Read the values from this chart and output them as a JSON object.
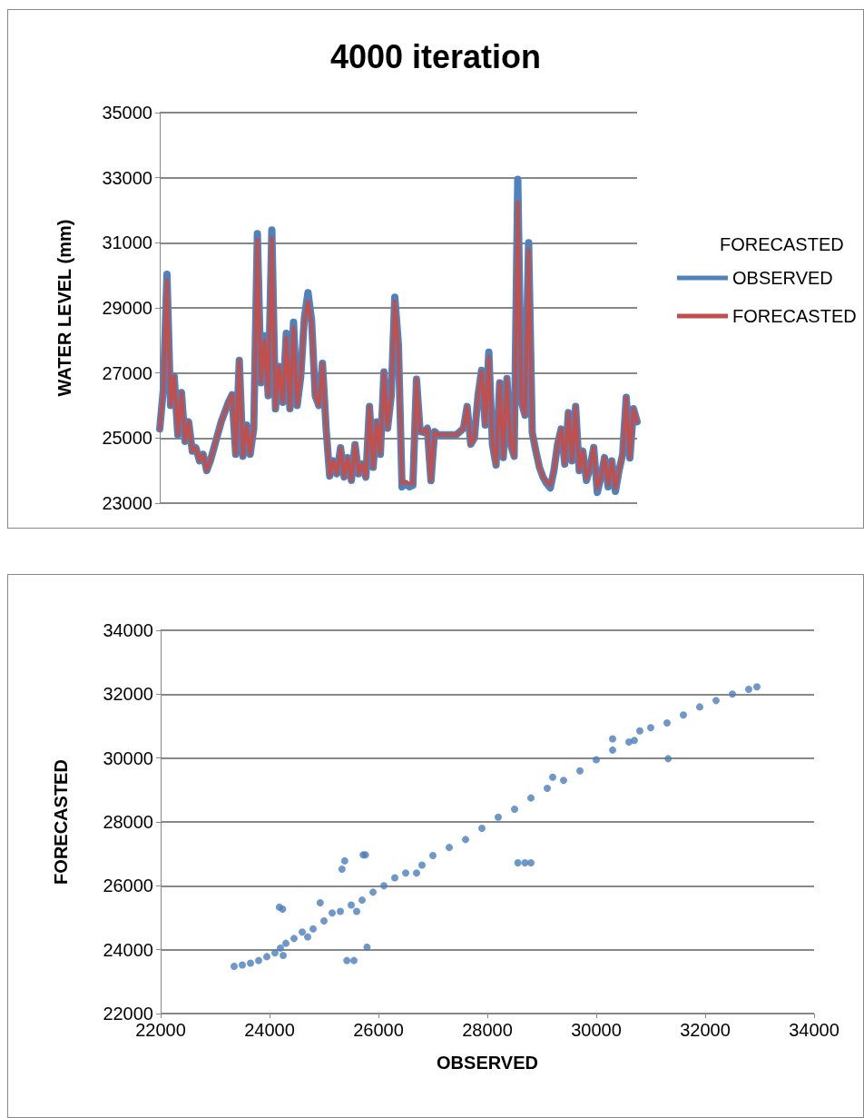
{
  "chart_data": [
    {
      "type": "line",
      "title": "4000 iteration",
      "ylabel": "WATER LEVEL (mm)",
      "legend_title": "FORECASTED",
      "categories": [
        null,
        null,
        null,
        null,
        null,
        null,
        null,
        null,
        null,
        null,
        null,
        null,
        null,
        null,
        null,
        null,
        null,
        null,
        null,
        null,
        null,
        null,
        null,
        null,
        null,
        null,
        null,
        null,
        null,
        null,
        null,
        null,
        null,
        null,
        null,
        null,
        null,
        null,
        null,
        null,
        null,
        null,
        null,
        null,
        null,
        null,
        null,
        null,
        null,
        null,
        null,
        null,
        null,
        null,
        null,
        null,
        null,
        null,
        null,
        null,
        null,
        null,
        null,
        null,
        null,
        null,
        null,
        null,
        null,
        null,
        null,
        null,
        null,
        null,
        null,
        null,
        null,
        null,
        null,
        null,
        null,
        null,
        null,
        null,
        null,
        null,
        null,
        null,
        null,
        null,
        null,
        null,
        null,
        null,
        null,
        null,
        null,
        null,
        null,
        null,
        null,
        null,
        null,
        null,
        null,
        null,
        null,
        null,
        null,
        null,
        null,
        null,
        null,
        null,
        null,
        null,
        null,
        null,
        null,
        null,
        null,
        null,
        null,
        null,
        null,
        null,
        null,
        null,
        null,
        null,
        null,
        null,
        null
      ],
      "series": [
        {
          "name": "OBSERVED",
          "color": "#4f81bd",
          "values": [
            25280,
            26500,
            30030,
            26000,
            26900,
            25100,
            26400,
            24900,
            25500,
            24600,
            24700,
            24300,
            24500,
            24000,
            24300,
            24700,
            25100,
            25500,
            25800,
            26100,
            26330,
            24500,
            27390,
            24440,
            25400,
            24500,
            25300,
            31280,
            26700,
            28140,
            26300,
            31390,
            25900,
            27200,
            26100,
            28220,
            25900,
            28560,
            26000,
            26900,
            28700,
            29470,
            28600,
            26300,
            26000,
            27300,
            25300,
            23830,
            24300,
            23900,
            24700,
            23800,
            24400,
            23700,
            24800,
            23900,
            24200,
            23800,
            25970,
            24100,
            25500,
            24500,
            27030,
            25300,
            26300,
            29330,
            27860,
            23500,
            23600,
            23500,
            23550,
            26810,
            25200,
            25170,
            25300,
            23690,
            25200,
            25100,
            25100,
            25100,
            25100,
            25100,
            25100,
            25200,
            25300,
            25970,
            24810,
            25000,
            26300,
            27080,
            25400,
            27640,
            24800,
            24170,
            26700,
            24400,
            26830,
            24800,
            24440,
            32950,
            26110,
            25700,
            31000,
            25170,
            24600,
            24100,
            23800,
            23600,
            23470,
            24000,
            24800,
            25280,
            24200,
            25780,
            24300,
            25970,
            24000,
            24600,
            23700,
            24100,
            24710,
            23330,
            23800,
            24400,
            23500,
            24300,
            23360,
            24000,
            24500,
            26250,
            24390,
            25900,
            25500
          ]
        },
        {
          "name": "FORECASTED",
          "color": "#c0504d",
          "values": [
            25280,
            26500,
            29860,
            26000,
            26900,
            25100,
            26400,
            24900,
            25500,
            24600,
            24700,
            24300,
            24500,
            24000,
            24300,
            24700,
            25100,
            25500,
            25800,
            26100,
            26330,
            24500,
            27390,
            24440,
            25400,
            24500,
            25300,
            31100,
            26700,
            28000,
            26300,
            31150,
            25900,
            27200,
            26100,
            28100,
            25900,
            28400,
            26000,
            26900,
            28600,
            29200,
            28500,
            26300,
            26000,
            27300,
            25300,
            23830,
            24300,
            23900,
            24700,
            23800,
            24400,
            23700,
            24800,
            23900,
            24200,
            23800,
            25970,
            24100,
            25500,
            24500,
            27030,
            25300,
            26300,
            29200,
            27800,
            23600,
            23650,
            23600,
            23600,
            26810,
            25200,
            25170,
            25300,
            23690,
            25200,
            25100,
            25100,
            25100,
            25100,
            25100,
            25100,
            25200,
            25300,
            25970,
            24810,
            25000,
            26300,
            27050,
            25400,
            27500,
            24800,
            24170,
            26700,
            24400,
            26830,
            24800,
            24440,
            32250,
            26110,
            25700,
            30800,
            25170,
            24600,
            24100,
            23800,
            23650,
            23550,
            24000,
            24800,
            25280,
            24200,
            25780,
            24300,
            25970,
            24000,
            24600,
            23750,
            24100,
            24710,
            23450,
            23800,
            24400,
            23550,
            24300,
            23450,
            24000,
            24500,
            26250,
            24390,
            25900,
            25500
          ]
        }
      ],
      "ylim": [
        23000,
        35000
      ],
      "yticks": [
        23000,
        25000,
        27000,
        29000,
        31000,
        33000,
        35000
      ],
      "grid": "y",
      "legend": "right",
      "tick_labels": "y",
      "marker": "none",
      "line_style": "solid"
    },
    {
      "type": "scatter",
      "xlabel": "OBSERVED",
      "ylabel": "FORECASTED",
      "x": [
        23350,
        23500,
        23650,
        23800,
        23950,
        24100,
        24200,
        24300,
        24250,
        24450,
        24600,
        24800,
        25000,
        25150,
        25300,
        25500,
        25700,
        25900,
        26100,
        26300,
        26500,
        26800,
        27000,
        27300,
        27600,
        27900,
        28200,
        28500,
        28800,
        29100,
        29400,
        29700,
        30000,
        30300,
        30600,
        30800,
        31000,
        31300,
        31600,
        31900,
        32200,
        32500,
        32800,
        32950,
        24700,
        25600,
        26700,
        29200,
        30300,
        30700,
        24180,
        24240,
        25330,
        25380,
        25720,
        25760,
        24930,
        25790,
        25420,
        25550,
        28560,
        28690,
        28800,
        31320
      ],
      "series": [
        {
          "color": "#4a7ebb",
          "values": [
            23480,
            23520,
            23580,
            23660,
            23780,
            23900,
            24050,
            24200,
            23820,
            24350,
            24550,
            24650,
            24900,
            25150,
            25200,
            25400,
            25550,
            25800,
            26000,
            26250,
            26400,
            26650,
            26950,
            27200,
            27450,
            27800,
            28150,
            28400,
            28750,
            29050,
            29300,
            29600,
            29950,
            30250,
            30500,
            30850,
            30950,
            31100,
            31350,
            31600,
            31800,
            32000,
            32150,
            32230,
            24400,
            25200,
            26400,
            29400,
            30600,
            30550,
            25330,
            25270,
            26520,
            26780,
            26970,
            26970,
            25470,
            24080,
            23660,
            23660,
            26720,
            26720,
            26720,
            29980
          ]
        }
      ],
      "xlim": [
        22000,
        34000
      ],
      "xticks": [
        22000,
        24000,
        26000,
        28000,
        30000,
        32000,
        34000
      ],
      "ylim": [
        22000,
        34000
      ],
      "yticks": [
        22000,
        24000,
        26000,
        28000,
        30000,
        32000,
        34000
      ],
      "grid": "y",
      "marker": "circle"
    }
  ]
}
